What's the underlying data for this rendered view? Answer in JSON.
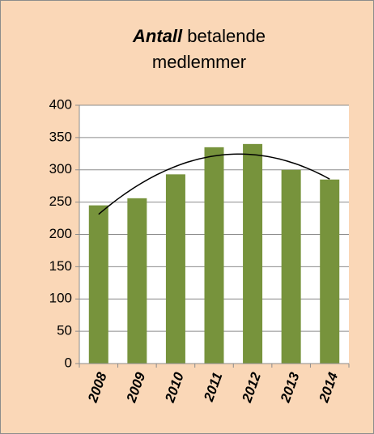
{
  "chart_data": {
    "type": "bar",
    "title": [
      "Antall",
      "betalende medlemmer"
    ],
    "categories": [
      "2008",
      "2009",
      "2010",
      "2011",
      "2012",
      "2013",
      "2014"
    ],
    "values": [
      245,
      256,
      293,
      335,
      340,
      300,
      285
    ],
    "color": "#77933c",
    "ylim": [
      0,
      400
    ],
    "yticks": [
      0,
      50,
      100,
      150,
      200,
      250,
      300,
      350,
      400
    ],
    "grid": true,
    "trendline": {
      "type": "polynomial",
      "order": 2,
      "color": "#000000"
    }
  }
}
